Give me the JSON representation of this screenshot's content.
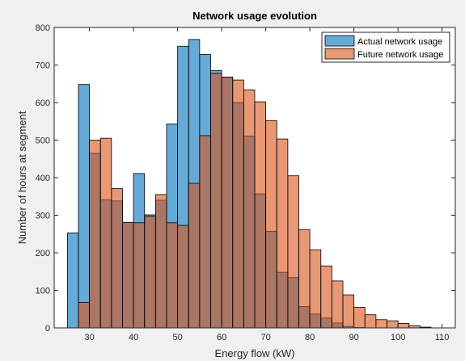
{
  "chart_data": {
    "type": "bar",
    "title": "Network usage evolution",
    "xlabel": "Energy flow (kW)",
    "ylabel": "Number of hours at segment",
    "xlim": [
      22,
      113
    ],
    "ylim": [
      0,
      800
    ],
    "xticks": [
      30,
      40,
      50,
      60,
      70,
      80,
      90,
      100,
      110
    ],
    "yticks": [
      0,
      100,
      200,
      300,
      400,
      500,
      600,
      700,
      800
    ],
    "grid": false,
    "legend_position": "top-right",
    "bin_width": 2.5,
    "series": [
      {
        "name": "Actual network usage",
        "color": "#0072BD",
        "bins": [
          {
            "x0": 25.0,
            "value": 253
          },
          {
            "x0": 27.5,
            "value": 648
          },
          {
            "x0": 30.0,
            "value": 465
          },
          {
            "x0": 32.5,
            "value": 341
          },
          {
            "x0": 35.0,
            "value": 338
          },
          {
            "x0": 37.5,
            "value": 281
          },
          {
            "x0": 40.0,
            "value": 411
          },
          {
            "x0": 42.5,
            "value": 301
          },
          {
            "x0": 45.0,
            "value": 340
          },
          {
            "x0": 47.5,
            "value": 543
          },
          {
            "x0": 50.0,
            "value": 750
          },
          {
            "x0": 52.5,
            "value": 768
          },
          {
            "x0": 55.0,
            "value": 728
          },
          {
            "x0": 57.5,
            "value": 685
          },
          {
            "x0": 60.0,
            "value": 668
          },
          {
            "x0": 62.5,
            "value": 600
          },
          {
            "x0": 65.0,
            "value": 511
          },
          {
            "x0": 67.5,
            "value": 357
          },
          {
            "x0": 70.0,
            "value": 257
          },
          {
            "x0": 72.5,
            "value": 148
          },
          {
            "x0": 75.0,
            "value": 134
          },
          {
            "x0": 77.5,
            "value": 57
          },
          {
            "x0": 80.0,
            "value": 37
          },
          {
            "x0": 82.5,
            "value": 26
          },
          {
            "x0": 85.0,
            "value": 13
          },
          {
            "x0": 87.5,
            "value": 4
          },
          {
            "x0": 90.0,
            "value": 1
          }
        ]
      },
      {
        "name": "Future network usage",
        "color": "#D95319",
        "bins": [
          {
            "x0": 27.5,
            "value": 68
          },
          {
            "x0": 30.0,
            "value": 500
          },
          {
            "x0": 32.5,
            "value": 505
          },
          {
            "x0": 35.0,
            "value": 371
          },
          {
            "x0": 37.5,
            "value": 281
          },
          {
            "x0": 40.0,
            "value": 280
          },
          {
            "x0": 42.5,
            "value": 297
          },
          {
            "x0": 45.0,
            "value": 355
          },
          {
            "x0": 47.5,
            "value": 280
          },
          {
            "x0": 50.0,
            "value": 273
          },
          {
            "x0": 52.5,
            "value": 385
          },
          {
            "x0": 55.0,
            "value": 512
          },
          {
            "x0": 57.5,
            "value": 678
          },
          {
            "x0": 60.0,
            "value": 668
          },
          {
            "x0": 62.5,
            "value": 660
          },
          {
            "x0": 65.0,
            "value": 634
          },
          {
            "x0": 67.5,
            "value": 602
          },
          {
            "x0": 70.0,
            "value": 552
          },
          {
            "x0": 72.5,
            "value": 503
          },
          {
            "x0": 75.0,
            "value": 405
          },
          {
            "x0": 77.5,
            "value": 262
          },
          {
            "x0": 80.0,
            "value": 208
          },
          {
            "x0": 82.5,
            "value": 165
          },
          {
            "x0": 85.0,
            "value": 125
          },
          {
            "x0": 87.5,
            "value": 88
          },
          {
            "x0": 90.0,
            "value": 55
          },
          {
            "x0": 92.5,
            "value": 35
          },
          {
            "x0": 95.0,
            "value": 22
          },
          {
            "x0": 97.5,
            "value": 19
          },
          {
            "x0": 100.0,
            "value": 12
          },
          {
            "x0": 102.5,
            "value": 6
          },
          {
            "x0": 105.0,
            "value": 2
          }
        ]
      }
    ]
  }
}
